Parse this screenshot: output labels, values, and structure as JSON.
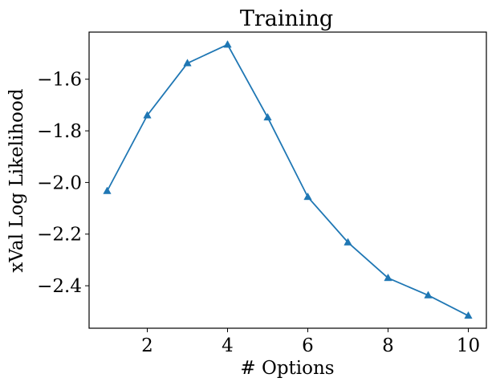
{
  "chart_data": {
    "type": "line",
    "title": "Training",
    "xlabel": "# Options",
    "ylabel": "xVal Log Likelihood",
    "x": [
      1,
      2,
      3,
      4,
      5,
      6,
      7,
      8,
      9,
      10
    ],
    "series": [
      {
        "values": [
          -2.033,
          -1.74,
          -1.538,
          -1.466,
          -1.748,
          -2.056,
          -2.232,
          -2.37,
          -2.437,
          -2.516
        ],
        "color": "#1f77b4",
        "marker": "triangle-up"
      }
    ],
    "xlim": [
      0.55,
      10.45
    ],
    "ylim": [
      -2.5645,
      -1.4175
    ],
    "xticks": [
      2,
      4,
      6,
      8,
      10
    ],
    "xtick_labels": [
      "2",
      "4",
      "6",
      "8",
      "10"
    ],
    "yticks": [
      -2.4,
      -2.2,
      -2.0,
      -1.8,
      -1.6
    ],
    "ytick_labels": [
      "−2.4",
      "−2.2",
      "−2.0",
      "−1.8",
      "−1.6"
    ],
    "grid": false,
    "legend": "none"
  }
}
